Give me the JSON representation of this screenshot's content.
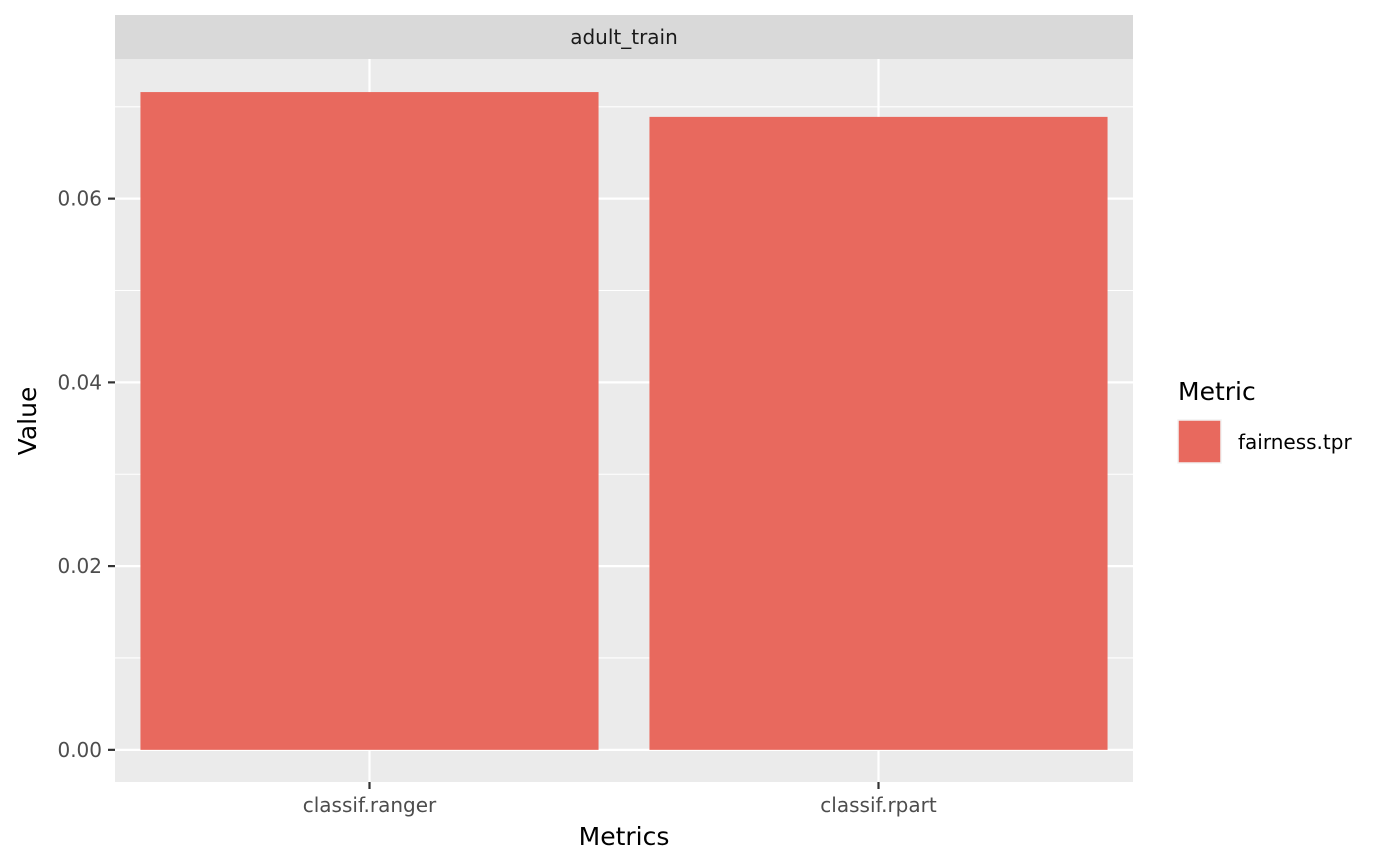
{
  "chart_data": {
    "type": "bar",
    "facet": "adult_train",
    "categories": [
      "classif.ranger",
      "classif.rpart"
    ],
    "series": [
      {
        "name": "fairness.tpr",
        "values": [
          0.0716,
          0.0689
        ]
      }
    ],
    "xlabel": "Metrics",
    "ylabel": "Value",
    "ylim": [
      -0.0035,
      0.0752
    ],
    "yticks": [
      0.0,
      0.02,
      0.04,
      0.06
    ],
    "ytick_labels": [
      "0.00",
      "0.02",
      "0.04",
      "0.06"
    ],
    "legend": {
      "title": "Metric",
      "placement": "right",
      "items": [
        "fairness.tpr"
      ]
    },
    "grid": true,
    "colors": {
      "bar": "#E8695E",
      "panel_bg": "#EBEBEB",
      "strip_bg": "#D9D9D9",
      "grid": "#FFFFFF"
    }
  }
}
